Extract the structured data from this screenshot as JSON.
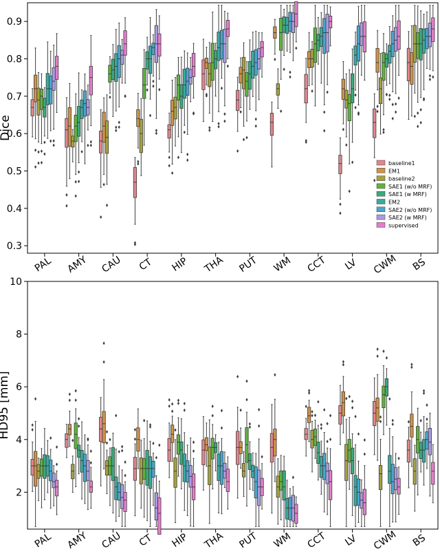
{
  "chart_data": [
    {
      "type": "box",
      "ylabel": "Dice",
      "ylim": [
        0.28,
        0.95
      ],
      "yticks": [
        0.3,
        0.4,
        0.5,
        0.6,
        0.7,
        0.8,
        0.9
      ],
      "categories": [
        "PAL",
        "AMY",
        "CAU",
        "CT",
        "HIP",
        "THA",
        "PUT",
        "WM",
        "CCT",
        "LV",
        "CWM",
        "BS"
      ],
      "legend_position": "lower-right",
      "series": [
        {
          "name": "baseline1",
          "color": "#e0868e",
          "median": [
            0.67,
            0.61,
            0.58,
            0.47,
            0.61,
            0.76,
            0.69,
            0.63,
            0.72,
            0.52,
            0.63,
            0.79
          ]
        },
        {
          "name": "EM1",
          "color": "#ce9349",
          "median": [
            0.72,
            0.62,
            0.62,
            0.64,
            0.66,
            0.79,
            0.76,
            0.87,
            0.8,
            0.72,
            0.79,
            0.78
          ]
        },
        {
          "name": "baseline2",
          "color": "#a5a140",
          "median": [
            0.69,
            0.58,
            0.59,
            0.6,
            0.67,
            0.76,
            0.77,
            0.72,
            0.8,
            0.69,
            0.72,
            0.84
          ]
        },
        {
          "name": "SAE1 (w/o MRF)",
          "color": "#5fb340",
          "median": [
            0.7,
            0.62,
            0.76,
            0.73,
            0.73,
            0.79,
            0.74,
            0.87,
            0.84,
            0.68,
            0.79,
            0.84
          ]
        },
        {
          "name": "SAE1 (w MRF)",
          "color": "#3ba97c",
          "median": [
            0.67,
            0.63,
            0.77,
            0.8,
            0.7,
            0.8,
            0.76,
            0.89,
            0.85,
            0.72,
            0.8,
            0.84
          ]
        },
        {
          "name": "EM2",
          "color": "#3ba8a0",
          "median": [
            0.72,
            0.67,
            0.78,
            0.8,
            0.73,
            0.83,
            0.78,
            0.89,
            0.86,
            0.81,
            0.82,
            0.85
          ]
        },
        {
          "name": "SAE2 (w/o MRF)",
          "color": "#4aa6cd",
          "median": [
            0.72,
            0.68,
            0.8,
            0.83,
            0.74,
            0.84,
            0.79,
            0.9,
            0.87,
            0.84,
            0.84,
            0.86
          ]
        },
        {
          "name": "SAE2 (w MRF)",
          "color": "#a89be0",
          "median": [
            0.74,
            0.67,
            0.81,
            0.84,
            0.75,
            0.84,
            0.8,
            0.9,
            0.87,
            0.86,
            0.85,
            0.86
          ]
        },
        {
          "name": "supervised",
          "color": "#e37ecb",
          "median": [
            0.78,
            0.75,
            0.84,
            0.84,
            0.78,
            0.88,
            0.83,
            0.92,
            0.9,
            0.86,
            0.86,
            0.88
          ]
        }
      ]
    },
    {
      "type": "box",
      "ylabel": "HD95 [mm]",
      "ylim": [
        0.6,
        10.0
      ],
      "yticks": [
        2,
        4,
        6,
        8,
        10
      ],
      "categories": [
        "PAL",
        "AMY",
        "CAU",
        "CT",
        "HIP",
        "THA",
        "PUT",
        "WM",
        "CCT",
        "LV",
        "CWM",
        "BS"
      ],
      "series": [
        {
          "name": "baseline1",
          "median": [
            3.0,
            4.0,
            4.4,
            2.9,
            3.6,
            3.6,
            3.7,
            3.7,
            4.2,
            5.0,
            5.0,
            3.6
          ]
        },
        {
          "name": "EM1",
          "median": [
            3.0,
            4.4,
            4.6,
            4.0,
            4.2,
            3.8,
            3.7,
            4.0,
            4.9,
            5.4,
            5.2,
            4.5
          ]
        },
        {
          "name": "baseline2",
          "median": [
            2.8,
            2.8,
            3.0,
            2.9,
            2.8,
            3.0,
            2.8,
            2.2,
            4.0,
            3.2,
            2.7,
            2.8
          ]
        },
        {
          "name": "SAE1 (w/o MRF)",
          "median": [
            3.0,
            4.2,
            3.0,
            2.9,
            3.9,
            3.7,
            3.8,
            2.4,
            4.1,
            3.6,
            5.7,
            4.0
          ]
        },
        {
          "name": "SAE1 (w MRF)",
          "median": [
            3.0,
            3.6,
            3.0,
            2.9,
            3.6,
            3.7,
            3.2,
            2.2,
            3.5,
            3.2,
            6.0,
            3.6
          ]
        },
        {
          "name": "EM2",
          "median": [
            3.0,
            3.2,
            2.2,
            2.9,
            3.0,
            3.0,
            2.8,
            1.4,
            3.0,
            2.2,
            2.8,
            3.6
          ]
        },
        {
          "name": "SAE2 (w/o MRF)",
          "median": [
            2.8,
            3.0,
            2.0,
            2.9,
            2.8,
            3.0,
            2.4,
            1.4,
            3.0,
            2.0,
            2.4,
            4.0
          ]
        },
        {
          "name": "SAE2 (w MRF)",
          "median": [
            2.4,
            2.8,
            1.8,
            1.4,
            2.6,
            2.8,
            2.2,
            1.4,
            2.8,
            1.7,
            2.5,
            3.9
          ]
        },
        {
          "name": "supervised",
          "median": [
            2.2,
            2.2,
            1.7,
            1.2,
            2.2,
            2.4,
            2.2,
            1.2,
            2.4,
            1.6,
            2.2,
            2.8
          ]
        }
      ]
    }
  ]
}
